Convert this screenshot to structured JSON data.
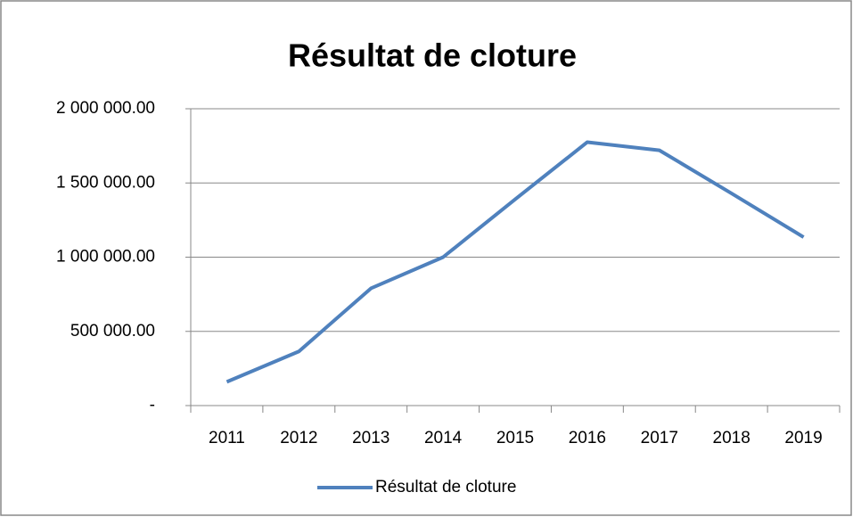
{
  "chart_data": {
    "type": "line",
    "title": "Résultat de cloture",
    "categories": [
      "2011",
      "2012",
      "2013",
      "2014",
      "2015",
      "2016",
      "2017",
      "2018",
      "2019"
    ],
    "series": [
      {
        "name": "Résultat de cloture",
        "color": "#4f81bd",
        "values": [
          160000,
          365000,
          790000,
          1000000,
          1390000,
          1775000,
          1720000,
          1430000,
          1135000
        ]
      }
    ],
    "ylim": [
      0,
      2000000
    ],
    "yticks": [
      {
        "value": 0,
        "label": "-"
      },
      {
        "value": 500000,
        "label": "500 000.00"
      },
      {
        "value": 1000000,
        "label": "1 000 000.00"
      },
      {
        "value": 1500000,
        "label": "1 500 000.00"
      },
      {
        "value": 2000000,
        "label": "2 000 000.00"
      }
    ],
    "grid": true,
    "legend": "bottom"
  }
}
